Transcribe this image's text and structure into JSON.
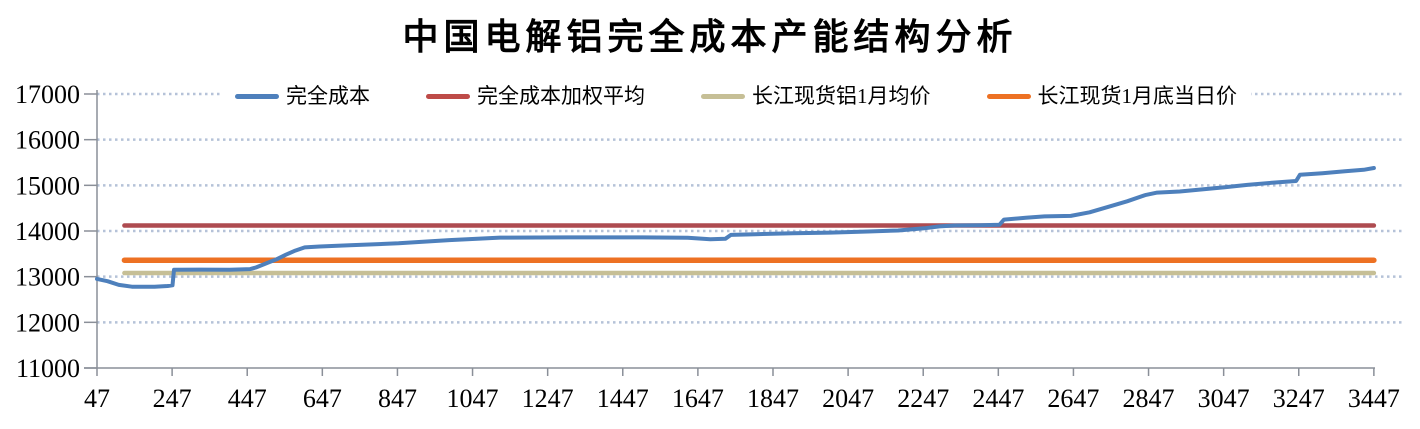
{
  "title": "中国电解铝完全成本产能结构分析",
  "colors": {
    "grid": "#B5C2D8",
    "axis": "#8A8F98",
    "tick_label": "#000000",
    "background": "#FFFFFF"
  },
  "chart_data": {
    "type": "line",
    "title": "中国电解铝完全成本产能结构分析",
    "xlabel": "",
    "ylabel": "",
    "x_range": [
      47,
      3450
    ],
    "y_range": [
      11000,
      17000
    ],
    "x_ticks": [
      47,
      247,
      447,
      647,
      847,
      1047,
      1247,
      1447,
      1647,
      1847,
      2047,
      2247,
      2447,
      2647,
      2847,
      3047,
      3247,
      3447
    ],
    "y_ticks": [
      11000,
      12000,
      13000,
      14000,
      15000,
      16000,
      17000
    ],
    "grid": "horizontal-dotted",
    "legend_position": "top-inside",
    "series": [
      {
        "name": "完全成本",
        "type": "line",
        "color": "#4E80BC",
        "points": [
          [
            47,
            12950
          ],
          [
            75,
            12900
          ],
          [
            105,
            12820
          ],
          [
            140,
            12780
          ],
          [
            200,
            12780
          ],
          [
            235,
            12795
          ],
          [
            248,
            12810
          ],
          [
            252,
            13150
          ],
          [
            320,
            13155
          ],
          [
            400,
            13150
          ],
          [
            455,
            13165
          ],
          [
            470,
            13200
          ],
          [
            500,
            13300
          ],
          [
            525,
            13380
          ],
          [
            550,
            13480
          ],
          [
            575,
            13570
          ],
          [
            600,
            13640
          ],
          [
            640,
            13660
          ],
          [
            720,
            13690
          ],
          [
            850,
            13730
          ],
          [
            985,
            13800
          ],
          [
            1060,
            13830
          ],
          [
            1120,
            13855
          ],
          [
            1300,
            13860
          ],
          [
            1500,
            13860
          ],
          [
            1620,
            13850
          ],
          [
            1680,
            13820
          ],
          [
            1720,
            13830
          ],
          [
            1735,
            13915
          ],
          [
            1800,
            13930
          ],
          [
            1900,
            13950
          ],
          [
            2000,
            13965
          ],
          [
            2100,
            13990
          ],
          [
            2180,
            14010
          ],
          [
            2250,
            14060
          ],
          [
            2290,
            14100
          ],
          [
            2330,
            14120
          ],
          [
            2400,
            14125
          ],
          [
            2450,
            14135
          ],
          [
            2462,
            14250
          ],
          [
            2520,
            14290
          ],
          [
            2570,
            14320
          ],
          [
            2640,
            14330
          ],
          [
            2690,
            14410
          ],
          [
            2740,
            14530
          ],
          [
            2790,
            14650
          ],
          [
            2840,
            14790
          ],
          [
            2870,
            14840
          ],
          [
            2930,
            14865
          ],
          [
            2990,
            14910
          ],
          [
            3050,
            14960
          ],
          [
            3110,
            15010
          ],
          [
            3180,
            15060
          ],
          [
            3240,
            15095
          ],
          [
            3250,
            15230
          ],
          [
            3310,
            15265
          ],
          [
            3370,
            15310
          ],
          [
            3420,
            15340
          ],
          [
            3447,
            15380
          ]
        ]
      },
      {
        "name": "完全成本加权平均",
        "type": "hline",
        "color": "#AE4B50",
        "legend_color": "#BE4B48",
        "value": 14120,
        "x_start": 120,
        "x_end": 3447
      },
      {
        "name": "长江现货铝1月均价",
        "type": "hline",
        "color": "#C6BF96",
        "legend_color": "#C6BF96",
        "value": 13080,
        "x_start": 120,
        "x_end": 3447
      },
      {
        "name": "长江现货1月底当日价",
        "type": "hline",
        "color": "#ED7123",
        "legend_color": "#ED7123",
        "value": 13360,
        "x_start": 120,
        "x_end": 3447
      }
    ]
  }
}
